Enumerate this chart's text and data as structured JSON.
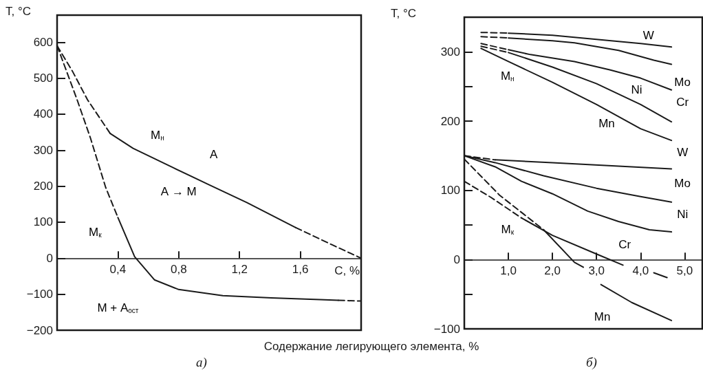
{
  "chart_data": [
    {
      "type": "line",
      "title": "а)",
      "ylabel": "T, °C",
      "xlabel": "C, %",
      "xlim": [
        0,
        2.0
      ],
      "ylim": [
        -200,
        675
      ],
      "xticks": [
        {
          "value": 0.4,
          "label": "0,4"
        },
        {
          "value": 0.8,
          "label": "0,8"
        },
        {
          "value": 1.2,
          "label": "1,2"
        },
        {
          "value": 1.6,
          "label": "1,6"
        }
      ],
      "yticks": [
        {
          "value": -200,
          "label": "−200"
        },
        {
          "value": -100,
          "label": "−100"
        },
        0,
        100,
        200,
        300,
        400,
        500,
        600
      ],
      "series": [
        {
          "color": "#1a1a1a",
          "line_style": "dashed",
          "x": [
            0,
            0.1,
            0.2,
            0.35
          ],
          "values": [
            590,
            520,
            440,
            346
          ]
        },
        {
          "color": "#1a1a1a",
          "line_style": "solid",
          "x": [
            0.35,
            0.5,
            0.77,
            1.0,
            1.25,
            1.57
          ],
          "values": [
            346,
            305,
            250,
            204,
            154,
            85
          ]
        },
        {
          "color": "#1a1a1a",
          "line_style": "dashed",
          "x": [
            1.57,
            1.81,
            2.0
          ],
          "values": [
            85,
            37,
            0
          ]
        },
        {
          "color": "#1a1a1a",
          "line_style": "dashed",
          "x": [
            0,
            0.13,
            0.22,
            0.32,
            0.4
          ],
          "values": [
            590,
            442,
            333,
            196,
            113
          ]
        },
        {
          "color": "#1a1a1a",
          "line_style": "solid",
          "x": [
            0.4,
            0.51,
            0.64,
            0.8,
            1.09,
            1.41,
            1.73,
            1.85
          ],
          "values": [
            113,
            4,
            -60,
            -87,
            -104,
            -110,
            -115,
            -117
          ]
        },
        {
          "color": "#1a1a1a",
          "line_style": "dashed",
          "x": [
            1.85,
            2.0
          ],
          "values": [
            -117,
            -119
          ]
        }
      ],
      "annotations": [
        {
          "text": "M$_{н}$",
          "x": 0.66,
          "y": 342
        },
        {
          "text": "M$_{к}$",
          "x": 0.25,
          "y": 72
        },
        {
          "text": "А",
          "x": 1.03,
          "y": 288
        },
        "А → М",
        "М + А$_{ост}$"
      ]
    },
    {
      "type": "line",
      "title": "б)",
      "ylabel": "T, °C",
      "xlabel": "Содержание легирующего элемента, %",
      "xlim": [
        0,
        5.4
      ],
      "ylim": [
        -100,
        350
      ],
      "xticks": [
        {
          "value": 1,
          "label": "1,0"
        },
        {
          "value": 2,
          "label": "2,0"
        },
        {
          "value": 3,
          "label": "3,0"
        },
        {
          "value": 4,
          "label": "4,0"
        },
        {
          "value": 5,
          "label": "5,0"
        }
      ],
      "yticks": [
        {
          "value": -100,
          "label": "−100"
        },
        {
          "value": -50,
          "label": null
        },
        0,
        {
          "value": 50,
          "label": null
        },
        100,
        200,
        {
          "value": 250,
          "label": null
        },
        300
      ],
      "series": [
        {
          "color": "#1a1a1a",
          "line_style": "dashed",
          "x": [
            0.38,
            1.0
          ],
          "values": [
            328,
            327
          ]
        },
        {
          "color": "#1a1a1a",
          "line_style": "solid",
          "x": [
            1.0,
            2,
            3,
            4,
            4.7
          ],
          "values": [
            327,
            324,
            318,
            312,
            307
          ]
        },
        {
          "color": "#1a1a1a",
          "line_style": "dashed",
          "x": [
            0.38,
            1.0
          ],
          "values": [
            322,
            320
          ]
        },
        {
          "color": "#1a1a1a",
          "line_style": "solid",
          "x": [
            1.0,
            2,
            2.5,
            3.5,
            4.3,
            4.7
          ],
          "values": [
            320,
            316,
            313,
            302,
            288,
            282
          ]
        },
        {
          "color": "#1a1a1a",
          "line_style": "dashed",
          "x": [
            0.38,
            1.0
          ],
          "values": [
            312,
            303
          ]
        },
        {
          "color": "#1a1a1a",
          "line_style": "solid",
          "x": [
            1.0,
            1.5,
            2.5,
            3.3,
            4,
            4.7
          ],
          "values": [
            303,
            296,
            286,
            274,
            262,
            245
          ]
        },
        {
          "color": "#1a1a1a",
          "line_style": "dashed",
          "x": [
            0.38,
            1.0
          ],
          "values": [
            308,
            299
          ]
        },
        {
          "color": "#1a1a1a",
          "line_style": "solid",
          "x": [
            1,
            2,
            3,
            4,
            4.7
          ],
          "values": [
            299,
            278,
            254,
            224,
            199
          ]
        },
        {
          "color": "#1a1a1a",
          "line_style": "solid",
          "x": [
            0.38,
            1,
            2,
            3,
            4,
            4.7
          ],
          "values": [
            305,
            286,
            256,
            224,
            189,
            172
          ]
        },
        {
          "color": "#1a1a1a",
          "line_style": "dashed",
          "x": [
            0,
            0.7
          ],
          "values": [
            150,
            144
          ]
        },
        {
          "color": "#1a1a1a",
          "line_style": "solid",
          "x": [
            0.7,
            2,
            3.5,
            4.7
          ],
          "values": [
            144,
            140,
            135,
            131
          ]
        },
        {
          "color": "#1a1a1a",
          "line_style": "solid",
          "x": [
            0,
            0.7,
            1.8,
            3,
            4,
            4.7
          ],
          "values": [
            150,
            140,
            121,
            103,
            91,
            83
          ]
        },
        {
          "color": "#1a1a1a",
          "line_style": "solid",
          "x": [
            0,
            0.7,
            1.3,
            2,
            2.8,
            3.5,
            4.2,
            4.7
          ],
          "values": [
            150,
            134,
            113,
            95,
            70,
            55,
            43,
            40
          ]
        },
        {
          "color": "#1a1a1a",
          "line_style": "dashed",
          "x": [
            0,
            0.6,
            1.3
          ],
          "values": [
            113,
            90,
            60
          ]
        },
        {
          "color": "#1a1a1a",
          "line_style": "solid",
          "x": [
            1.3,
            2,
            3,
            3.6,
            3.95,
            4.3,
            4.6
          ],
          "values": [
            60,
            35,
            8,
            -8,
            null,
            -19,
            -26
          ]
        },
        {
          "color": "#1a1a1a",
          "line_style": "dashed",
          "x": [
            0,
            0.8,
            1.8
          ],
          "values": [
            145,
            93,
            43
          ]
        },
        {
          "color": "#1a1a1a",
          "line_style": "solid",
          "x": [
            1.8,
            2.5,
            2.7,
            2.9,
            3.1,
            3.8,
            4.7
          ],
          "values": [
            43,
            -4,
            -11,
            null,
            -36,
            -62,
            -88
          ]
        }
      ],
      "annotations": [
        {
          "text": "M$_{н}$",
          "x": 0.98,
          "y": 265
        },
        {
          "text": "M$_{к}$",
          "x": 0.98,
          "y": 44
        },
        {
          "text": "W",
          "x": 4.18,
          "y": 324
        },
        {
          "text": "Mo",
          "x": 4.95,
          "y": 256
        },
        {
          "text": "Ni",
          "x": 3.91,
          "y": 245
        },
        {
          "text": "Cr",
          "x": 4.95,
          "y": 227
        },
        {
          "text": "Mn",
          "x": 3.23,
          "y": 197
        },
        {
          "text": "W",
          "x": 4.95,
          "y": 155
        },
        {
          "text": "Mo",
          "x": 4.95,
          "y": 110
        },
        {
          "text": "Ni",
          "x": 4.95,
          "y": 65
        },
        {
          "text": "Cr",
          "x": 3.64,
          "y": 22
        },
        {
          "text": "Mn",
          "x": 3.13,
          "y": -83
        }
      ]
    }
  ]
}
